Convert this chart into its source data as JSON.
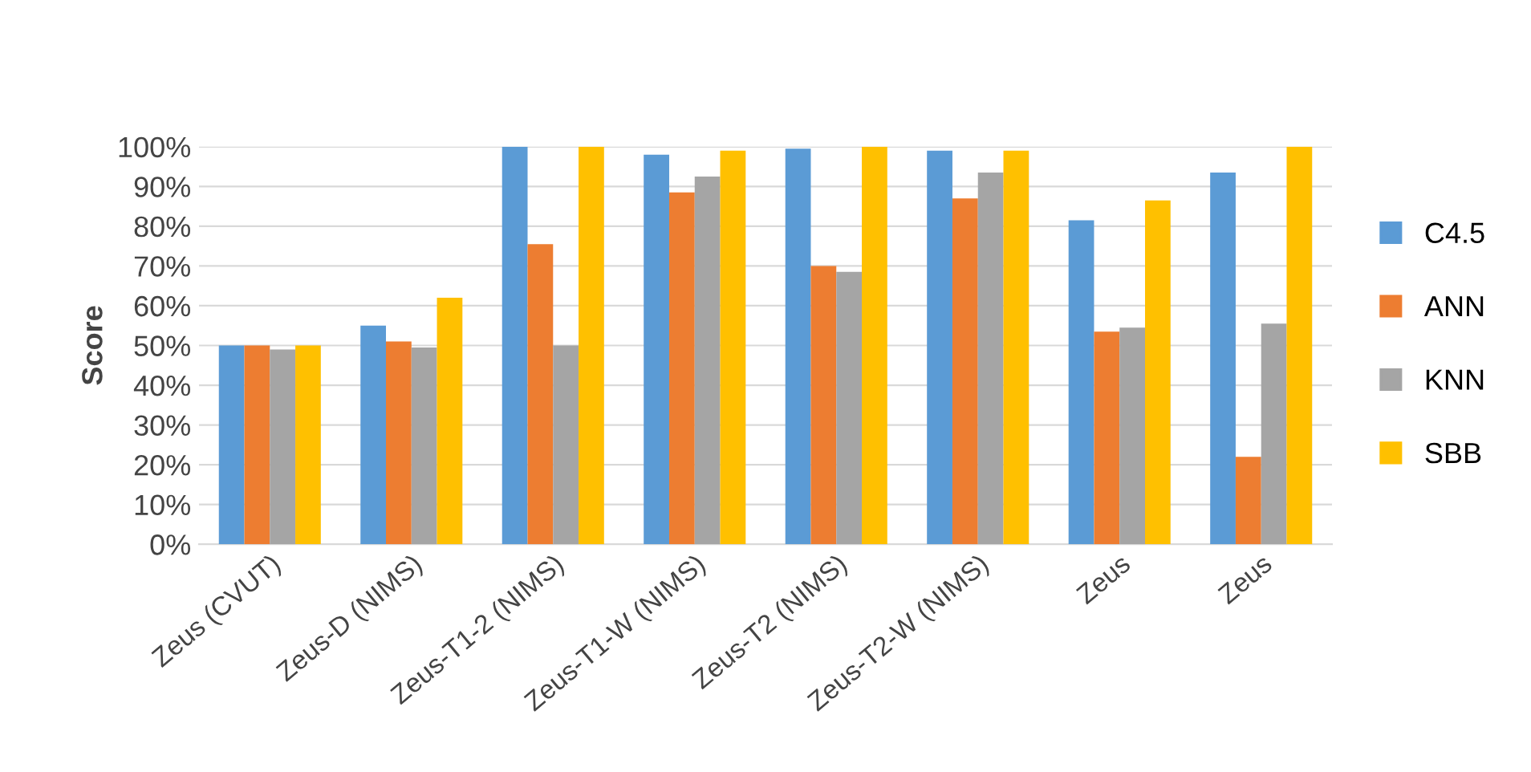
{
  "chart_data": {
    "type": "bar",
    "ylabel": "Score",
    "categories": [
      "Zeus (CVUT)",
      "Zeus-D (NIMS)",
      "Zeus-T1-2 (NIMS)",
      "Zeus-T1-W (NIMS)",
      "Zeus-T2 (NIMS)",
      "Zeus-T2-W (NIMS)",
      "Zeus",
      "Zeus"
    ],
    "series": [
      {
        "name": "C4.5",
        "color": "#5b9bd5",
        "values": [
          50,
          55,
          100,
          98,
          99.5,
          99,
          81.5,
          93.5
        ]
      },
      {
        "name": "ANN",
        "color": "#ed7d31",
        "values": [
          50,
          51,
          75.5,
          88.5,
          70,
          87,
          53.5,
          22
        ]
      },
      {
        "name": "KNN",
        "color": "#a5a5a5",
        "values": [
          49,
          49.5,
          50,
          92.5,
          68.5,
          93.5,
          54.5,
          55.5
        ]
      },
      {
        "name": "SBB",
        "color": "#ffc000",
        "values": [
          50,
          62,
          100,
          99,
          100,
          99,
          86.5,
          100
        ]
      }
    ],
    "ylim": [
      0,
      100
    ],
    "yticks": [
      {
        "value": 0,
        "label": "0%"
      },
      {
        "value": 10,
        "label": "10%"
      },
      {
        "value": 20,
        "label": "20%"
      },
      {
        "value": 30,
        "label": "30%"
      },
      {
        "value": 40,
        "label": "40%"
      },
      {
        "value": 50,
        "label": "50%"
      },
      {
        "value": 60,
        "label": "60%"
      },
      {
        "value": 70,
        "label": "70%"
      },
      {
        "value": 80,
        "label": "80%"
      },
      {
        "value": 90,
        "label": "90%"
      },
      {
        "value": 100,
        "label": "100%"
      }
    ],
    "grid": "y",
    "legend": "right"
  }
}
